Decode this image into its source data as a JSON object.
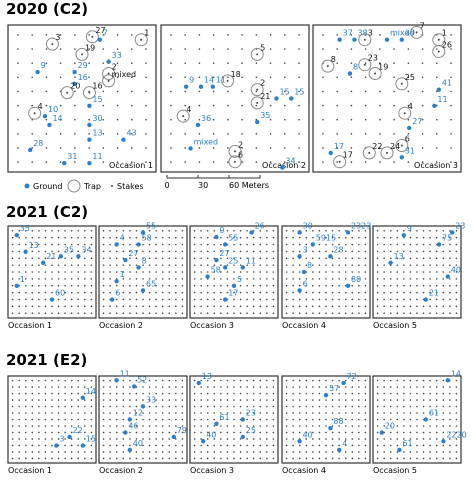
{
  "sections": [
    {
      "title": "2020 (C2)",
      "occasions": [
        {
          "label": "Occasion 1",
          "points": [
            {
              "label": "3",
              "kind": "trap"
            },
            {
              "label": "27",
              "kind": "trap"
            },
            {
              "label": "7",
              "kind": "ground"
            },
            {
              "label": "19",
              "kind": "trap"
            },
            {
              "label": "9",
              "kind": "ground"
            },
            {
              "label": "33",
              "kind": "ground"
            },
            {
              "label": "2",
              "kind": "trap"
            },
            {
              "label": "29",
              "kind": "ground"
            },
            {
              "label": "mixed",
              "kind": "trap"
            },
            {
              "label": "16",
              "kind": "ground"
            },
            {
              "label": "20",
              "kind": "trap"
            },
            {
              "label": "16",
              "kind": "trap"
            },
            {
              "label": "4",
              "kind": "trap"
            },
            {
              "label": "10",
              "kind": "ground"
            },
            {
              "label": "14",
              "kind": "ground"
            },
            {
              "label": "15",
              "kind": "ground"
            },
            {
              "label": "30",
              "kind": "ground"
            },
            {
              "label": "13",
              "kind": "ground"
            },
            {
              "label": "43",
              "kind": "ground"
            },
            {
              "label": "28",
              "kind": "ground"
            },
            {
              "label": "31",
              "kind": "ground"
            },
            {
              "label": "11",
              "kind": "ground"
            },
            {
              "label": "1",
              "kind": "trap"
            }
          ]
        },
        {
          "label": "Occasion 2",
          "points": [
            {
              "label": "5",
              "kind": "trap"
            },
            {
              "label": "18",
              "kind": "trap"
            },
            {
              "label": "9",
              "kind": "ground"
            },
            {
              "label": "14",
              "kind": "ground"
            },
            {
              "label": "11",
              "kind": "ground"
            },
            {
              "label": "2",
              "kind": "trap"
            },
            {
              "label": "21",
              "kind": "trap"
            },
            {
              "label": "15",
              "kind": "ground"
            },
            {
              "label": "15",
              "kind": "ground"
            },
            {
              "label": "4",
              "kind": "trap"
            },
            {
              "label": "36",
              "kind": "ground"
            },
            {
              "label": "35",
              "kind": "ground"
            },
            {
              "label": "mixed",
              "kind": "ground"
            },
            {
              "label": "2",
              "kind": "trap"
            },
            {
              "label": "6",
              "kind": "trap"
            },
            {
              "label": "34",
              "kind": "ground"
            }
          ]
        },
        {
          "label": "Occasion 3",
          "points": [
            {
              "label": "37",
              "kind": "ground"
            },
            {
              "label": "38",
              "kind": "ground"
            },
            {
              "label": "3",
              "kind": "trap"
            },
            {
              "label": "mixed",
              "kind": "ground"
            },
            {
              "label": "39",
              "kind": "ground"
            },
            {
              "label": "7",
              "kind": "trap"
            },
            {
              "label": "1",
              "kind": "trap"
            },
            {
              "label": "26",
              "kind": "trap"
            },
            {
              "label": "8",
              "kind": "trap"
            },
            {
              "label": "8",
              "kind": "ground"
            },
            {
              "label": "23",
              "kind": "trap"
            },
            {
              "label": "19",
              "kind": "trap"
            },
            {
              "label": "25",
              "kind": "trap"
            },
            {
              "label": "41",
              "kind": "ground"
            },
            {
              "label": "11",
              "kind": "ground"
            },
            {
              "label": "4",
              "kind": "trap"
            },
            {
              "label": "27",
              "kind": "ground"
            },
            {
              "label": "6",
              "kind": "trap"
            },
            {
              "label": "17",
              "kind": "ground"
            },
            {
              "label": "17",
              "kind": "trap"
            },
            {
              "label": "22",
              "kind": "trap"
            },
            {
              "label": "24",
              "kind": "trap"
            },
            {
              "label": "31",
              "kind": "ground"
            }
          ]
        }
      ]
    },
    {
      "title": "2021 (C2)",
      "occasions": [
        {
          "label": "Occasion 1",
          "points": [
            {
              "label": "35",
              "kind": "ground"
            },
            {
              "label": "13",
              "kind": "ground"
            },
            {
              "label": "35",
              "kind": "ground"
            },
            {
              "label": "34",
              "kind": "ground"
            },
            {
              "label": "21",
              "kind": "ground"
            },
            {
              "label": "1",
              "kind": "ground"
            },
            {
              "label": "60",
              "kind": "ground"
            }
          ]
        },
        {
          "label": "Occasion 2",
          "points": [
            {
              "label": "55",
              "kind": "ground"
            },
            {
              "label": "4",
              "kind": "ground"
            },
            {
              "label": "58",
              "kind": "ground"
            },
            {
              "label": "27",
              "kind": "ground"
            },
            {
              "label": "8",
              "kind": "ground"
            },
            {
              "label": "1",
              "kind": "ground"
            },
            {
              "label": "65",
              "kind": "ground"
            },
            {
              "label": "6",
              "kind": "ground"
            }
          ]
        },
        {
          "label": "Occasion 3",
          "points": [
            {
              "label": "26",
              "kind": "ground"
            },
            {
              "label": "9",
              "kind": "ground"
            },
            {
              "label": "55",
              "kind": "ground"
            },
            {
              "label": "27",
              "kind": "ground"
            },
            {
              "label": "25",
              "kind": "ground"
            },
            {
              "label": "11",
              "kind": "ground"
            },
            {
              "label": "58",
              "kind": "ground"
            },
            {
              "label": "5",
              "kind": "ground"
            },
            {
              "label": "17",
              "kind": "ground"
            }
          ]
        },
        {
          "label": "Occasion 4",
          "points": [
            {
              "label": "30",
              "kind": "ground"
            },
            {
              "label": "2323",
              "kind": "ground"
            },
            {
              "label": "5915",
              "kind": "ground"
            },
            {
              "label": "3",
              "kind": "ground"
            },
            {
              "label": "28",
              "kind": "ground"
            },
            {
              "label": "8",
              "kind": "ground"
            },
            {
              "label": "6",
              "kind": "ground"
            },
            {
              "label": "80",
              "kind": "ground"
            }
          ]
        },
        {
          "label": "Occasion 5",
          "points": [
            {
              "label": "9",
              "kind": "ground"
            },
            {
              "label": "23",
              "kind": "ground"
            },
            {
              "label": "75",
              "kind": "ground"
            },
            {
              "label": "13",
              "kind": "ground"
            },
            {
              "label": "40",
              "kind": "ground"
            },
            {
              "label": "21",
              "kind": "ground"
            }
          ]
        }
      ]
    },
    {
      "title": "2021 (E2)",
      "occasions": [
        {
          "label": "Occasion 1",
          "points": [
            {
              "label": "14",
              "kind": "ground"
            },
            {
              "label": "22",
              "kind": "ground"
            },
            {
              "label": "3",
              "kind": "ground"
            },
            {
              "label": "15",
              "kind": "ground"
            }
          ]
        },
        {
          "label": "Occasion 2",
          "points": [
            {
              "label": "11",
              "kind": "ground"
            },
            {
              "label": "52",
              "kind": "ground"
            },
            {
              "label": "33",
              "kind": "ground"
            },
            {
              "label": "12",
              "kind": "ground"
            },
            {
              "label": "46",
              "kind": "ground"
            },
            {
              "label": "79",
              "kind": "ground"
            },
            {
              "label": "40",
              "kind": "ground"
            }
          ]
        },
        {
          "label": "Occasion 3",
          "points": [
            {
              "label": "13",
              "kind": "ground"
            },
            {
              "label": "61",
              "kind": "ground"
            },
            {
              "label": "23",
              "kind": "ground"
            },
            {
              "label": "25",
              "kind": "ground"
            },
            {
              "label": "40",
              "kind": "ground"
            }
          ]
        },
        {
          "label": "Occasion 4",
          "points": [
            {
              "label": "72",
              "kind": "ground"
            },
            {
              "label": "57",
              "kind": "ground"
            },
            {
              "label": "88",
              "kind": "ground"
            },
            {
              "label": "40",
              "kind": "ground"
            },
            {
              "label": "4",
              "kind": "ground"
            }
          ]
        },
        {
          "label": "Occasion 5",
          "points": [
            {
              "label": "14",
              "kind": "ground"
            },
            {
              "label": "61",
              "kind": "ground"
            },
            {
              "label": "20",
              "kind": "ground"
            },
            {
              "label": "2220",
              "kind": "ground"
            },
            {
              "label": "61",
              "kind": "ground"
            }
          ]
        }
      ]
    }
  ],
  "legend": {
    "ground": "Ground",
    "trap": "Trap",
    "stakes": "Stakes"
  },
  "scale": {
    "ticks": [
      "0",
      "30",
      "60 Meters"
    ]
  }
}
